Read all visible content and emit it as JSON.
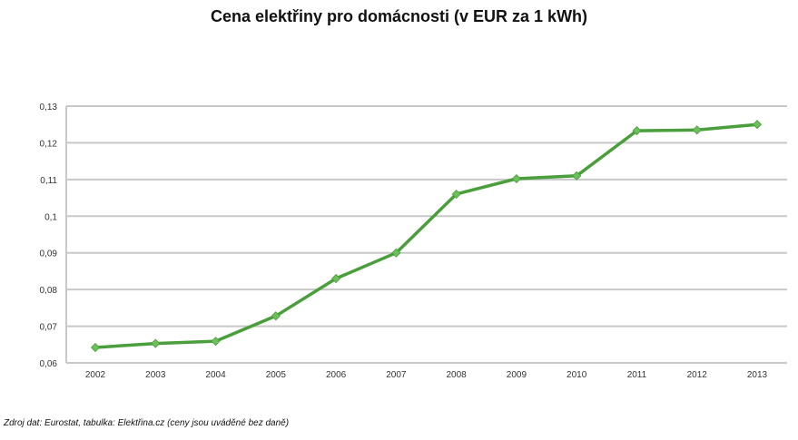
{
  "chart_data": {
    "type": "line",
    "title": "Cena elektřiny pro domácnosti (v EUR za 1 kWh)",
    "xlabel": "",
    "ylabel": "",
    "categories": [
      "2002",
      "2003",
      "2004",
      "2005",
      "2006",
      "2007",
      "2008",
      "2009",
      "2010",
      "2011",
      "2012",
      "2013"
    ],
    "series": [
      {
        "name": "Cena elektřiny",
        "color": "#4a9e3c",
        "marker_color": "#6cc05a",
        "values": [
          0.0642,
          0.0653,
          0.0659,
          0.0728,
          0.083,
          0.09,
          0.106,
          0.1102,
          0.111,
          0.1233,
          0.1235,
          0.125
        ]
      }
    ],
    "ylim": [
      0.06,
      0.13
    ],
    "yticks": [
      0.06,
      0.07,
      0.08,
      0.09,
      0.1,
      0.11,
      0.12,
      0.13
    ],
    "ytick_labels": [
      "0,06",
      "0,07",
      "0,08",
      "0,09",
      "0,1",
      "0,11",
      "0,12",
      "0,13"
    ],
    "grid": true,
    "legend": "none",
    "gridline_color": "#c8c8c8"
  },
  "footnote": "Zdroj dat: Eurostat, tabulka: Elektřina.cz (ceny jsou uváděné bez daně)"
}
